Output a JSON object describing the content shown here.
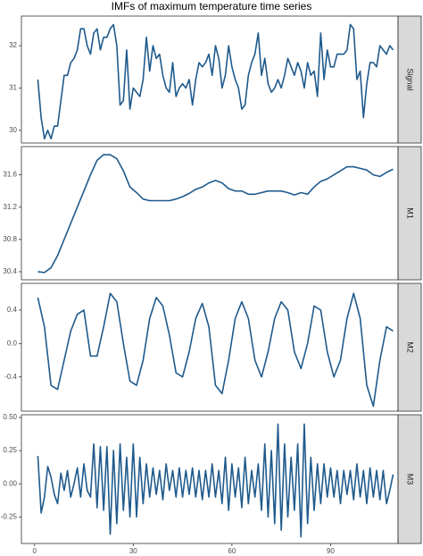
{
  "chart_data": [
    {
      "type": "line",
      "title": "IMFs of maximum temperature time series",
      "label": "Signal",
      "color": "#1f5a8c",
      "xlim": [
        -4,
        110.5
      ],
      "ylim": [
        29.7,
        32.7
      ],
      "yticks": [
        30,
        31,
        32
      ],
      "x": [
        1,
        2,
        3,
        4,
        5,
        6,
        7,
        8,
        9,
        10,
        11,
        12,
        13,
        14,
        15,
        16,
        17,
        18,
        19,
        20,
        21,
        22,
        23,
        24,
        25,
        26,
        27,
        28,
        29,
        30,
        31,
        32,
        33,
        34,
        35,
        36,
        37,
        38,
        39,
        40,
        41,
        42,
        43,
        44,
        45,
        46,
        47,
        48,
        49,
        50,
        51,
        52,
        53,
        54,
        55,
        56,
        57,
        58,
        59,
        60,
        61,
        62,
        63,
        64,
        65,
        66,
        67,
        68,
        69,
        70,
        71,
        72,
        73,
        74,
        75,
        76,
        77,
        78,
        79,
        80,
        81,
        82,
        83,
        84,
        85,
        86,
        87,
        88,
        89,
        90,
        91,
        92,
        93,
        94,
        95,
        96,
        97,
        98,
        99,
        100,
        101,
        102,
        103,
        104,
        105,
        106,
        107,
        108,
        109
      ],
      "values": [
        31.2,
        30.3,
        29.8,
        30.0,
        29.8,
        30.1,
        30.1,
        30.7,
        31.3,
        31.3,
        31.6,
        31.7,
        31.9,
        32.4,
        32.4,
        32.0,
        31.8,
        32.3,
        32.4,
        31.9,
        32.2,
        32.2,
        32.4,
        32.5,
        32.0,
        30.6,
        30.7,
        31.9,
        30.5,
        31.0,
        30.9,
        30.8,
        31.2,
        32.2,
        31.4,
        32.0,
        31.7,
        31.8,
        31.3,
        31.0,
        30.9,
        31.6,
        30.8,
        31.0,
        31.1,
        31.0,
        31.2,
        30.6,
        31.2,
        31.6,
        31.5,
        31.6,
        31.8,
        31.3,
        32.0,
        31.7,
        31.0,
        31.3,
        32.0,
        31.5,
        31.2,
        31.0,
        30.5,
        30.6,
        31.3,
        31.6,
        31.8,
        32.3,
        31.3,
        31.7,
        31.1,
        30.9,
        31.0,
        31.2,
        31.0,
        31.3,
        31.7,
        31.5,
        31.3,
        31.6,
        31.4,
        31.0,
        31.6,
        31.3,
        31.4,
        30.8,
        32.3,
        31.2,
        31.9,
        31.5,
        31.5,
        31.8,
        31.8,
        31.8,
        31.9,
        32.5,
        32.4,
        31.2,
        31.4,
        30.3,
        31.1,
        31.6,
        31.6,
        31.5,
        32.0,
        31.9,
        31.8,
        32.0,
        31.9
      ]
    },
    {
      "type": "line",
      "label": "M1",
      "color": "#1f5a8c",
      "xlim": [
        -4,
        110.5
      ],
      "ylim": [
        30.3,
        31.95
      ],
      "yticks": [
        30.4,
        30.8,
        31.2,
        31.6
      ],
      "x": [
        1,
        3,
        5,
        7,
        9,
        11,
        13,
        15,
        17,
        19,
        21,
        23,
        25,
        27,
        29,
        31,
        33,
        35,
        37,
        39,
        41,
        43,
        45,
        47,
        49,
        51,
        53,
        55,
        57,
        59,
        61,
        63,
        65,
        67,
        69,
        71,
        73,
        75,
        77,
        79,
        81,
        83,
        85,
        87,
        89,
        91,
        93,
        95,
        97,
        99,
        101,
        103,
        105,
        107,
        109
      ],
      "values": [
        30.4,
        30.39,
        30.45,
        30.6,
        30.8,
        31.0,
        31.2,
        31.4,
        31.6,
        31.78,
        31.85,
        31.85,
        31.8,
        31.65,
        31.45,
        31.38,
        31.3,
        31.28,
        31.28,
        31.28,
        31.28,
        31.3,
        31.33,
        31.37,
        31.42,
        31.45,
        31.5,
        31.53,
        31.5,
        31.43,
        31.4,
        31.4,
        31.36,
        31.36,
        31.38,
        31.4,
        31.4,
        31.4,
        31.38,
        31.35,
        31.38,
        31.36,
        31.45,
        31.52,
        31.55,
        31.6,
        31.65,
        31.7,
        31.7,
        31.68,
        31.66,
        31.6,
        31.58,
        31.63,
        31.67
      ]
    },
    {
      "type": "line",
      "label": "M2",
      "color": "#1f5a8c",
      "xlim": [
        -4,
        110.5
      ],
      "ylim": [
        -0.81,
        0.72
      ],
      "yticks": [
        -0.4,
        {
          "value": 0,
          "label": "0.0"
        },
        0.4
      ],
      "x": [
        1,
        3,
        5,
        7,
        9,
        11,
        13,
        15,
        17,
        19,
        21,
        23,
        25,
        27,
        29,
        31,
        33,
        35,
        37,
        39,
        41,
        43,
        45,
        47,
        49,
        51,
        53,
        55,
        57,
        59,
        61,
        63,
        65,
        67,
        69,
        71,
        73,
        75,
        77,
        79,
        81,
        83,
        85,
        87,
        89,
        91,
        93,
        95,
        97,
        99,
        101,
        103,
        105,
        107,
        109
      ],
      "values": [
        0.55,
        0.2,
        -0.5,
        -0.55,
        -0.2,
        0.15,
        0.35,
        0.4,
        -0.15,
        -0.15,
        0.2,
        0.6,
        0.5,
        0.0,
        -0.45,
        -0.5,
        -0.2,
        0.3,
        0.55,
        0.45,
        0.1,
        -0.35,
        -0.4,
        -0.1,
        0.3,
        0.48,
        0.2,
        -0.5,
        -0.6,
        -0.2,
        0.3,
        0.5,
        0.3,
        -0.2,
        -0.4,
        -0.1,
        0.3,
        0.5,
        0.4,
        -0.1,
        -0.3,
        0.0,
        0.45,
        0.4,
        -0.1,
        -0.4,
        -0.2,
        0.3,
        0.6,
        0.3,
        -0.5,
        -0.75,
        -0.2,
        0.2,
        0.15
      ]
    },
    {
      "type": "line",
      "label": "M3",
      "color": "#1f5a8c",
      "xlim": [
        -4,
        110.5
      ],
      "ylim": [
        -0.45,
        0.52
      ],
      "yticks": [
        {
          "value": -0.25,
          "label": "-0.25"
        },
        {
          "value": 0,
          "label": "0.00"
        },
        {
          "value": 0.25,
          "label": "0.25"
        },
        {
          "value": 0.5,
          "label": "0.50"
        }
      ],
      "xticks": [
        0,
        30,
        60,
        90
      ],
      "x": [
        1,
        2,
        3,
        4,
        5,
        6,
        7,
        8,
        9,
        10,
        11,
        12,
        13,
        14,
        15,
        16,
        17,
        18,
        19,
        20,
        21,
        22,
        23,
        24,
        25,
        26,
        27,
        28,
        29,
        30,
        31,
        32,
        33,
        34,
        35,
        36,
        37,
        38,
        39,
        40,
        41,
        42,
        43,
        44,
        45,
        46,
        47,
        48,
        49,
        50,
        51,
        52,
        53,
        54,
        55,
        56,
        57,
        58,
        59,
        60,
        61,
        62,
        63,
        64,
        65,
        66,
        67,
        68,
        69,
        70,
        71,
        72,
        73,
        74,
        75,
        76,
        77,
        78,
        79,
        80,
        81,
        82,
        83,
        84,
        85,
        86,
        87,
        88,
        89,
        90,
        91,
        92,
        93,
        94,
        95,
        96,
        97,
        98,
        99,
        100,
        101,
        102,
        103,
        104,
        105,
        106,
        107,
        108,
        109
      ],
      "values": [
        0.21,
        -0.22,
        -0.1,
        0.13,
        0.05,
        -0.08,
        -0.15,
        0.08,
        -0.05,
        0.1,
        -0.1,
        0.0,
        0.12,
        -0.1,
        0.15,
        -0.05,
        -0.1,
        0.3,
        -0.18,
        0.28,
        -0.2,
        0.28,
        -0.38,
        0.25,
        -0.3,
        0.3,
        -0.2,
        0.2,
        -0.25,
        0.3,
        -0.25,
        0.2,
        -0.15,
        0.15,
        -0.1,
        0.12,
        -0.08,
        0.1,
        -0.12,
        0.15,
        -0.05,
        0.1,
        -0.1,
        0.12,
        -0.1,
        0.1,
        -0.08,
        0.12,
        -0.1,
        0.1,
        -0.12,
        0.1,
        -0.1,
        0.15,
        -0.1,
        0.1,
        -0.15,
        0.2,
        -0.2,
        0.15,
        -0.1,
        0.12,
        -0.18,
        0.2,
        -0.15,
        0.1,
        -0.1,
        0.15,
        -0.2,
        0.3,
        -0.25,
        0.25,
        -0.3,
        0.45,
        -0.35,
        0.3,
        -0.25,
        0.2,
        -0.2,
        0.3,
        -0.4,
        0.45,
        -0.3,
        0.2,
        -0.2,
        0.15,
        -0.15,
        0.15,
        -0.1,
        0.12,
        -0.1,
        0.1,
        -0.15,
        0.1,
        -0.08,
        0.1,
        -0.12,
        0.15,
        -0.1,
        0.1,
        -0.15,
        0.12,
        -0.1,
        0.1,
        -0.12,
        0.1,
        -0.15,
        -0.05,
        0.07
      ]
    }
  ]
}
